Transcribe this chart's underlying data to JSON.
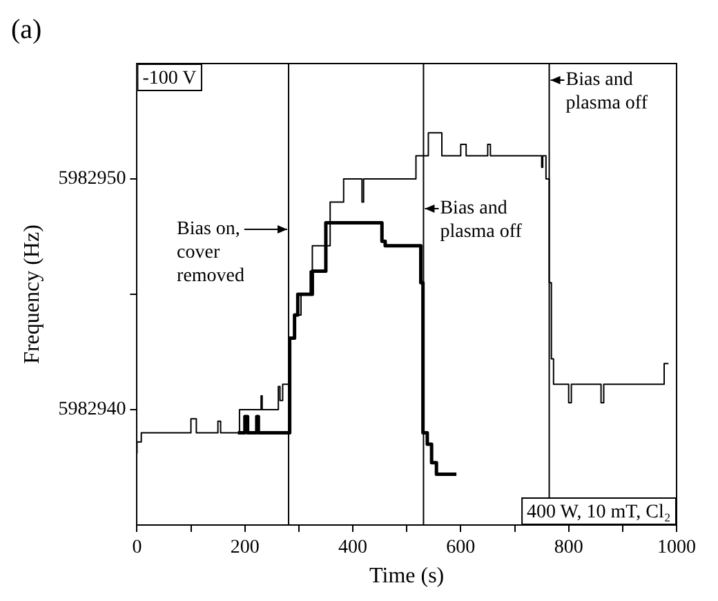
{
  "chart_data": {
    "type": "step",
    "title": "(a)",
    "xlabel": "Time (s)",
    "ylabel": "Frequency (Hz)",
    "xlim": [
      0,
      1000
    ],
    "xticks": [
      0,
      {
        "value": 100,
        "label": null
      },
      200,
      {
        "value": 300,
        "label": null
      },
      400,
      {
        "value": 500,
        "label": null
      },
      600,
      {
        "value": 700,
        "label": null
      },
      800,
      {
        "value": 900,
        "label": null
      },
      1000
    ],
    "ylim": [
      5982935,
      5982955
    ],
    "yticks": [
      5982940,
      {
        "value": 5982945,
        "label": null
      },
      5982950
    ],
    "grid": false,
    "legend": false,
    "marker": "none",
    "line_style": "solid",
    "series": [
      {
        "color": "#000000",
        "x": [
          0,
          8,
          20,
          100,
          110,
          112,
          150,
          155,
          160,
          190,
          195,
          230,
          232,
          235,
          262,
          265,
          270,
          278,
          283,
          292,
          304,
          321,
          325,
          358,
          383,
          417,
          420,
          434,
          517,
          525,
          540,
          545,
          565,
          570,
          600,
          610,
          615,
          650,
          655,
          660,
          750,
          752,
          758,
          764,
          768,
          772,
          780,
          800,
          805,
          815,
          860,
          865,
          880,
          977,
          985
        ],
        "values": [
          5982938.1,
          5982938.6,
          5982939.0,
          5982939.0,
          5982939.6,
          5982939.0,
          5982939.0,
          5982939.5,
          5982939.0,
          5982939.0,
          5982940.0,
          5982940.0,
          5982940.6,
          5982940.0,
          5982940.0,
          5982941.0,
          5982940.4,
          5982941.1,
          5982941.1,
          5982943.1,
          5982944.1,
          5982945.0,
          5982946.0,
          5982947.1,
          5982949.0,
          5982950.0,
          5982949.0,
          5982950.0,
          5982950.0,
          5982951.0,
          5982951.0,
          5982952.0,
          5982952.0,
          5982951.0,
          5982951.0,
          5982951.5,
          5982951.0,
          5982951.0,
          5982951.5,
          5982951.0,
          5982951.0,
          5982950.5,
          5982951.0,
          5982950.0,
          5982945.5,
          5982942.2,
          5982941.1,
          5982941.1,
          5982940.3,
          5982941.1,
          5982941.1,
          5982940.3,
          5982941.1,
          5982941.1,
          5982942.0
        ]
      },
      {
        "color": "#000000",
        "x": [
          187,
          200,
          205,
          208,
          222,
          225,
          228,
          283,
          292,
          298,
          325,
          350,
          354,
          454,
          460,
          470,
          526,
          530,
          538,
          546,
          555,
          567,
          592
        ],
        "values": [
          5982939.0,
          5982939.0,
          5982939.7,
          5982939.0,
          5982939.0,
          5982939.7,
          5982939.0,
          5982939.0,
          5982943.1,
          5982944.1,
          5982945.0,
          5982946.0,
          5982948.1,
          5982948.1,
          5982947.3,
          5982947.1,
          5982947.1,
          5982945.5,
          5982939.0,
          5982938.5,
          5982937.7,
          5982937.2,
          5982937.2
        ]
      }
    ],
    "ref_lines": [
      {
        "axis": "x",
        "value": 281,
        "label": "Bias on, cover removed",
        "color": "#000000"
      },
      {
        "axis": "x",
        "value": 531,
        "label": "Bias and plasma off",
        "color": "#000000"
      },
      {
        "axis": "x",
        "value": 764,
        "label": "Bias and plasma off",
        "color": "#000000"
      }
    ],
    "annotations": [
      "-100 V",
      "400 W, 10 mT, Cl₂"
    ]
  }
}
